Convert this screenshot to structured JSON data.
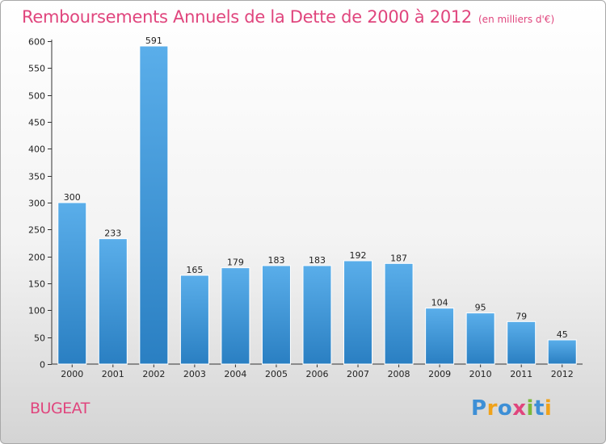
{
  "chart_data": {
    "type": "bar",
    "title": "Remboursements Annuels de la Dette de 2000 à 2012",
    "unit": "(en milliers d'€)",
    "categories": [
      "2000",
      "2001",
      "2002",
      "2003",
      "2004",
      "2005",
      "2006",
      "2007",
      "2008",
      "2009",
      "2010",
      "2011",
      "2012"
    ],
    "values": [
      300,
      233,
      591,
      165,
      179,
      183,
      183,
      192,
      187,
      104,
      95,
      79,
      45
    ],
    "ylim": [
      0,
      600
    ],
    "yticks": [
      0,
      50,
      100,
      150,
      200,
      250,
      300,
      350,
      400,
      450,
      500,
      550,
      600
    ],
    "grid": false,
    "colors": {
      "bar_light": "#5aaeea",
      "bar_dark": "#2a7fc2",
      "title": "#e0457d"
    }
  },
  "commune": "BUGEAT",
  "logo": {
    "letters": [
      "P",
      "r",
      "o",
      "x",
      "i",
      "t",
      "i"
    ],
    "colors": [
      "#3d8fd6",
      "#f0a21a",
      "#3d8fd6",
      "#e0457d",
      "#7cb83a",
      "#3d8fd6",
      "#f0a21a"
    ]
  }
}
